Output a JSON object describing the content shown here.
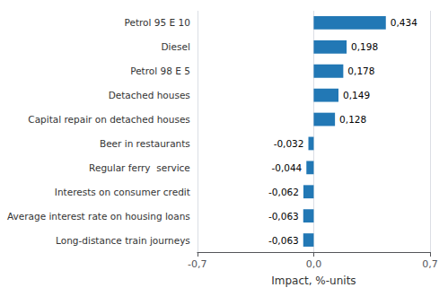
{
  "chart_data": {
    "type": "bar",
    "orientation": "horizontal",
    "categories": [
      "Long-distance train journeys",
      "Average interest rate on housing loans",
      "Interests on consumer credit",
      "Regular ferry  service",
      "Beer in restaurants",
      "Capital repair on detached houses",
      "Detached houses",
      "Petrol 98 E 5",
      "Diesel",
      "Petrol 95 E 10"
    ],
    "values": [
      -0.063,
      -0.063,
      -0.062,
      -0.044,
      -0.032,
      0.128,
      0.149,
      0.178,
      0.198,
      0.434
    ],
    "value_labels": [
      "-0,063",
      "-0,063",
      "-0,062",
      "-0,044",
      "-0,032",
      "0,128",
      "0,149",
      "0,178",
      "0,198",
      "0,434"
    ],
    "data_labels": true,
    "color": "#2278b5",
    "xlabel": "Impact, %-units",
    "xlim": [
      -0.7,
      0.7
    ],
    "xticks": [
      {
        "value": -0.7,
        "label": "-0,7"
      },
      {
        "value": 0.0,
        "label": "0,0"
      },
      {
        "value": 0.7,
        "label": "0,7"
      }
    ],
    "grid": true
  }
}
